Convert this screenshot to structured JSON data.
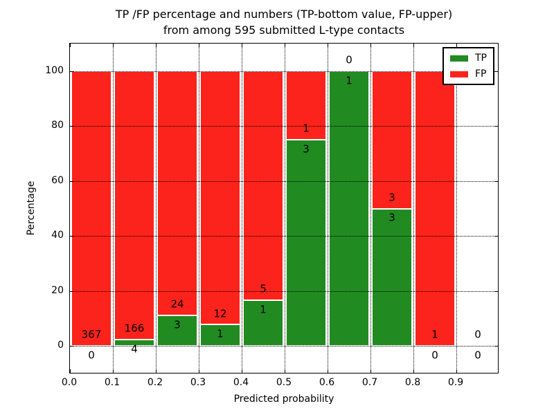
{
  "title": {
    "line1": "TP /FP percentage and numbers (TP-bottom value, FP-upper)",
    "line2": "from among 595 submitted L-type contacts"
  },
  "axes": {
    "xlabel": "Predicted probability",
    "ylabel": "Percentage",
    "xlim": [
      0.0,
      1.0
    ],
    "ylim": [
      -10.4,
      110.4
    ],
    "yticks": [
      0,
      20,
      40,
      60,
      80,
      100
    ],
    "xticks": [
      "0.0",
      "0.1",
      "0.2",
      "0.3",
      "0.4",
      "0.5",
      "0.6",
      "0.7",
      "0.8",
      "0.9"
    ],
    "grid": "dotted"
  },
  "legend": {
    "position": "upper-right",
    "items": [
      {
        "label": "TP",
        "color": "#218b21"
      },
      {
        "label": "FP",
        "color": "#fb231b"
      }
    ]
  },
  "chart_data": {
    "type": "bar",
    "stacked": true,
    "title": "TP /FP percentage and numbers (TP-bottom value, FP-upper) from among 595 submitted L-type contacts",
    "xlabel": "Predicted probability",
    "ylabel": "Percentage",
    "total_submitted": 595,
    "bin_width": 0.1,
    "colors": {
      "tp": "#218b21",
      "fp": "#fb231b"
    },
    "bins": [
      {
        "range": [
          0.0,
          0.1
        ],
        "tp": 0,
        "fp": 367,
        "tp_pct": 0.0,
        "fp_pct": 100.0
      },
      {
        "range": [
          0.1,
          0.2
        ],
        "tp": 4,
        "fp": 166,
        "tp_pct": 2.35,
        "fp_pct": 97.65
      },
      {
        "range": [
          0.2,
          0.3
        ],
        "tp": 3,
        "fp": 24,
        "tp_pct": 11.11,
        "fp_pct": 88.89
      },
      {
        "range": [
          0.3,
          0.4
        ],
        "tp": 1,
        "fp": 12,
        "tp_pct": 7.69,
        "fp_pct": 92.31
      },
      {
        "range": [
          0.4,
          0.5
        ],
        "tp": 1,
        "fp": 5,
        "tp_pct": 16.67,
        "fp_pct": 83.33
      },
      {
        "range": [
          0.5,
          0.6
        ],
        "tp": 3,
        "fp": 1,
        "tp_pct": 75.0,
        "fp_pct": 25.0
      },
      {
        "range": [
          0.6,
          0.7
        ],
        "tp": 1,
        "fp": 0,
        "tp_pct": 100.0,
        "fp_pct": 0.0
      },
      {
        "range": [
          0.7,
          0.8
        ],
        "tp": 3,
        "fp": 3,
        "tp_pct": 50.0,
        "fp_pct": 50.0
      },
      {
        "range": [
          0.8,
          0.9
        ],
        "tp": 0,
        "fp": 1,
        "tp_pct": 0.0,
        "fp_pct": 100.0
      },
      {
        "range": [
          0.9,
          1.0
        ],
        "tp": 0,
        "fp": 0,
        "tp_pct": null,
        "fp_pct": null
      }
    ]
  }
}
